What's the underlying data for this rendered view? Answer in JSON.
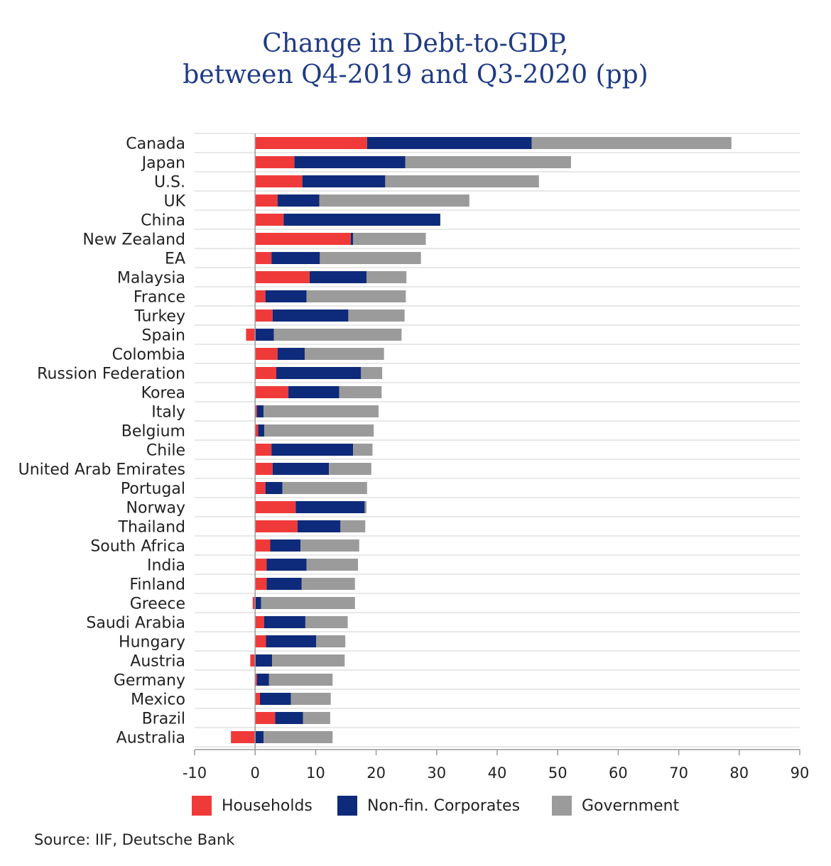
{
  "chart_data": {
    "type": "bar",
    "orientation": "horizontal",
    "stacked": true,
    "title": "Change in Debt-to-GDP,",
    "subtitle": "between Q4-2019 and Q3-2020 (pp)",
    "xlim": [
      -10,
      90
    ],
    "xticks": [
      -10,
      0,
      10,
      20,
      30,
      40,
      50,
      60,
      70,
      80,
      90
    ],
    "grid": "horizontal row separators",
    "legend_position": "bottom",
    "categories": [
      "Canada",
      "Japan",
      "U.S.",
      "UK",
      "China",
      "New Zealand",
      "EA",
      "Malaysia",
      "France",
      "Turkey",
      "Spain",
      "Colombia",
      "Russion Federation",
      "Korea",
      "Italy",
      "Belgium",
      "Chile",
      "United Arab Emirates",
      "Portugal",
      "Norway",
      "Thailand",
      "South Africa",
      "India",
      "Finland",
      "Greece",
      "Saudi Arabia",
      "Hungary",
      "Austria",
      "Germany",
      "Mexico",
      "Brazil",
      "Australia"
    ],
    "series": [
      {
        "name": "Households",
        "color": "#f03a3a",
        "values": [
          18.5,
          6.5,
          7.8,
          3.7,
          4.7,
          15.8,
          2.7,
          9.0,
          1.7,
          2.9,
          -1.5,
          3.7,
          3.5,
          5.5,
          0.3,
          0.5,
          2.7,
          2.9,
          1.7,
          6.7,
          7.0,
          2.5,
          1.9,
          1.9,
          -0.4,
          1.5,
          1.8,
          -0.8,
          0.3,
          0.8,
          3.3,
          -4.0
        ]
      },
      {
        "name": "Non-fin. Corporates",
        "color": "#0e2a7a",
        "values": [
          27.2,
          18.3,
          13.7,
          6.9,
          25.9,
          0.4,
          8.0,
          9.4,
          6.8,
          12.5,
          3.1,
          4.5,
          14.0,
          8.4,
          1.1,
          1.0,
          13.5,
          9.3,
          2.8,
          11.4,
          7.1,
          5.0,
          6.6,
          5.8,
          1.0,
          6.8,
          8.3,
          2.8,
          2.0,
          5.1,
          4.6,
          1.4
        ]
      },
      {
        "name": "Government",
        "color": "#9b9b9b",
        "values": [
          33.0,
          27.4,
          25.4,
          24.8,
          0.0,
          12.0,
          16.7,
          6.6,
          16.4,
          9.3,
          21.1,
          13.1,
          3.5,
          7.0,
          19.0,
          18.1,
          3.2,
          7.0,
          14.0,
          0.3,
          4.1,
          9.7,
          8.5,
          8.8,
          15.5,
          7.0,
          4.8,
          12.0,
          10.5,
          6.6,
          4.5,
          11.4
        ]
      }
    ],
    "source": "Source: IIF, Deutsche Bank"
  }
}
